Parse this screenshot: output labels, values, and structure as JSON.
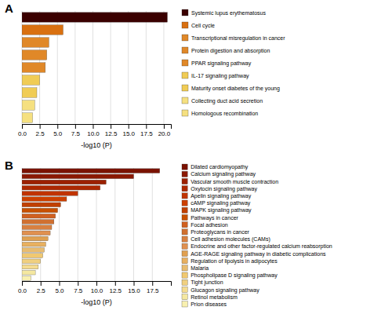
{
  "chart_data": [
    {
      "type": "bar",
      "title": "A",
      "orientation": "horizontal",
      "categories": [
        "Systemic lupus erythematosus",
        "Cell cycle",
        "Transcriptional misregulation in cancer",
        "Protein digestion and absorption",
        "PPAR signaling pathway",
        "IL-17 signaling pathway",
        "Maturity onset diabetes of the young",
        "Collecting duct acid secretion",
        "Homologous recombination"
      ],
      "values": [
        20.5,
        5.8,
        3.8,
        3.5,
        3.3,
        2.5,
        2.1,
        1.8,
        1.5
      ],
      "colors": [
        "#3a0000",
        "#d97010",
        "#e08828",
        "#e08828",
        "#e08828",
        "#f0cc55",
        "#f0cc55",
        "#f5e080",
        "#f5e080"
      ],
      "xlim": [
        0,
        21
      ],
      "xticks": [
        {
          "value": 0,
          "label": "0.0"
        },
        2.5,
        {
          "value": 5,
          "label": "5.0"
        },
        7.5,
        {
          "value": 10,
          "label": "10.0"
        },
        12.5,
        {
          "value": 15,
          "label": "15.0"
        },
        17.5,
        {
          "value": 20,
          "label": "20.0"
        }
      ],
      "xlabel": "-log10 (P)",
      "grid": true,
      "legend": "right",
      "tick_labels": "x"
    },
    {
      "type": "bar",
      "title": "B",
      "orientation": "horizontal",
      "categories": [
        "Dilated cardiomyopathy",
        "Calcium signaling pathway",
        "Vascular smooth muscle contraction",
        "Oxytocin signaling pathway",
        "Apelin signaling pathway",
        "cAMP signaling pathway",
        "MAPK signaling pathway",
        "Pathways in cancer",
        "Focal adhesion",
        "Proteoglycans in cancer",
        "Cell adhesion molecules (CAMs)",
        "Endocrine and other factor-regulated calcium reabsorption",
        "AGE-RAGE signaling pathway in diabetic complications",
        "Regulation of lipolysis in adipocytes",
        "Malaria",
        "Phospholipase D signaling pathway",
        "Tight junction",
        "Glucagon signaling pathway",
        "Retinol metabolism",
        "Prion diseases"
      ],
      "values": [
        18.5,
        15.0,
        11.3,
        10.5,
        7.5,
        6.0,
        5.2,
        4.8,
        4.5,
        4.3,
        4.0,
        3.8,
        3.5,
        3.2,
        3.0,
        2.8,
        2.5,
        2.2,
        1.8,
        1.2
      ],
      "colors": [
        "#7a1200",
        "#8b1800",
        "#9c2000",
        "#ad2800",
        "#c03400",
        "#cc4000",
        "#c04000",
        "#c85000",
        "#d06020",
        "#d07030",
        "#d88040",
        "#e09050",
        "#e0a050",
        "#e8b060",
        "#e8bc70",
        "#f0c870",
        "#f0d080",
        "#f5dc90",
        "#f5e8a0",
        "#f8f0b0"
      ],
      "xlim": [
        0,
        20
      ],
      "xticks": [
        {
          "value": 0,
          "label": "0.0"
        },
        2.5,
        {
          "value": 5,
          "label": "5.0"
        },
        7.5,
        {
          "value": 10,
          "label": "10.0"
        },
        12.5,
        {
          "value": 15,
          "label": "15.0"
        },
        17.5
      ],
      "xlabel": "-log10 (P)",
      "grid": true,
      "legend": "right",
      "tick_labels": "x"
    }
  ]
}
